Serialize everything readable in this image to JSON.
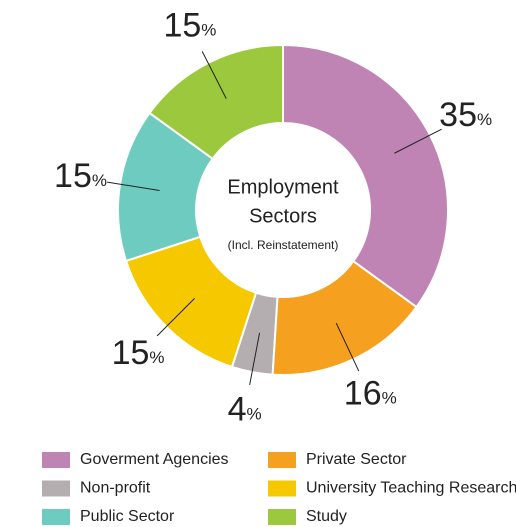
{
  "chart_data": {
    "type": "donut",
    "center_text": [
      "Employment",
      "Sectors",
      "(Incl. Reinstatement)"
    ],
    "categories": [
      "Goverment Agencies",
      "Private Sector",
      "Non-profit",
      "University Teaching Research",
      "Public Sector",
      "Study"
    ],
    "values": [
      35,
      16,
      4,
      15,
      15,
      15
    ],
    "value_labels": [
      "35%",
      "16%",
      "4%",
      "15%",
      "15%",
      "15%"
    ],
    "colors": [
      "#c084b4",
      "#f5a01e",
      "#b5aeb0",
      "#f5c800",
      "#6dcbc0",
      "#9bc83c"
    ],
    "legend": "bottom"
  }
}
